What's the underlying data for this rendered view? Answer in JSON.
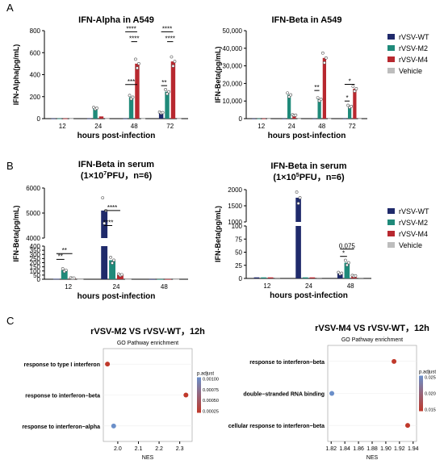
{
  "panel_letters": [
    "A",
    "B",
    "C"
  ],
  "colors": {
    "rVSV-WT": "#1f2a6b",
    "rVSV-M2": "#1f8a7a",
    "rVSV-M4": "#b8282f",
    "Vehicle": "#bdbdbd",
    "padj_low": "#c0392b",
    "padj_high": "#6b8fc9"
  },
  "legend": [
    "rVSV-WT",
    "rVSV-M2",
    "rVSV-M4",
    "Vehicle"
  ],
  "chart_data": [
    {
      "id": "A1",
      "type": "bar",
      "title": "IFN-Alpha in A549",
      "ylabel": "IFN-Alpha(pg/mL)",
      "xlabel": "hours post-infection",
      "categories": [
        "12",
        "24",
        "48",
        "72"
      ],
      "ylim": [
        0,
        800
      ],
      "yticks": [
        "0",
        "200",
        "400",
        "600",
        "800"
      ],
      "series": [
        {
          "name": "rVSV-WT",
          "values": [
            2,
            2,
            2,
            55
          ]
        },
        {
          "name": "rVSV-M2",
          "values": [
            2,
            95,
            195,
            245
          ]
        },
        {
          "name": "rVSV-M4",
          "values": [
            2,
            20,
            500,
            520
          ]
        },
        {
          "name": "Vehicle",
          "values": [
            2,
            2,
            2,
            2
          ]
        }
      ],
      "significance": [
        {
          "group": 2,
          "from": 0,
          "to": 2,
          "level": 310,
          "label": "***"
        },
        {
          "group": 2,
          "from": 1,
          "to": 2,
          "level": 700,
          "label": "****"
        },
        {
          "group": 2,
          "from": 0,
          "to": 2,
          "level": 790,
          "label": "****"
        },
        {
          "group": 3,
          "from": 0,
          "to": 1,
          "level": 300,
          "label": "**"
        },
        {
          "group": 3,
          "from": 0,
          "to": 2,
          "level": 790,
          "label": "****"
        },
        {
          "group": 3,
          "from": 1,
          "to": 2,
          "level": 700,
          "label": "****"
        }
      ]
    },
    {
      "id": "A2",
      "type": "bar",
      "title": "IFN-Beta in A549",
      "ylabel": "IFN-Beta(pg/mL)",
      "xlabel": "hours post-infection",
      "categories": [
        "12",
        "24",
        "48",
        "72"
      ],
      "ylim": [
        0,
        50000
      ],
      "yticks": [
        "0",
        "10,000",
        "20,000",
        "30,000",
        "40,000",
        "50,000"
      ],
      "series": [
        {
          "name": "rVSV-WT",
          "values": [
            100,
            100,
            100,
            100
          ]
        },
        {
          "name": "rVSV-M2",
          "values": [
            100,
            13500,
            11000,
            7000
          ]
        },
        {
          "name": "rVSV-M4",
          "values": [
            100,
            2000,
            34500,
            17000
          ]
        },
        {
          "name": "Vehicle",
          "values": [
            100,
            100,
            100,
            100
          ]
        }
      ],
      "significance": [
        {
          "group": 2,
          "from": 0,
          "to": 1,
          "level": 16000,
          "label": "**"
        },
        {
          "group": 3,
          "from": 0,
          "to": 1,
          "level": 10000,
          "label": "*"
        },
        {
          "group": 3,
          "from": 0,
          "to": 2,
          "level": 19500,
          "label": "*"
        }
      ]
    },
    {
      "id": "B1",
      "type": "bar",
      "title": "IFN-Beta in serum",
      "subtitle_pre": "(1×10",
      "subtitle_exp": "7",
      "subtitle_post": "PFU，n=6)",
      "ylabel": "IFN-Beta(pg/mL)",
      "xlabel": "hours post-infection",
      "categories": [
        "12",
        "24",
        "48"
      ],
      "axis_break": {
        "low": [
          0,
          400
        ],
        "high": [
          4000,
          6000
        ]
      },
      "yticks_low": [
        "0",
        "50",
        "100",
        "150",
        "200",
        "250",
        "300",
        "350",
        "400"
      ],
      "yticks_high": [
        "4000",
        "5000",
        "6000"
      ],
      "series": [
        {
          "name": "rVSV-WT",
          "values": [
            5,
            5100,
            2
          ]
        },
        {
          "name": "rVSV-M2",
          "values": [
            110,
            230,
            2
          ]
        },
        {
          "name": "rVSV-M4",
          "values": [
            15,
            55,
            2
          ]
        },
        {
          "name": "Vehicle",
          "values": [
            2,
            2,
            2
          ]
        }
      ],
      "significance": [
        {
          "group": 0,
          "from": 0,
          "to": 1,
          "level": 240,
          "label": "**"
        },
        {
          "group": 0,
          "from": 0,
          "to": 2,
          "level": 310,
          "label": "**"
        },
        {
          "group": 1,
          "from": 0,
          "to": 1,
          "level": 4500,
          "label": "****"
        },
        {
          "group": 1,
          "from": 0,
          "to": 2,
          "level": 5100,
          "label": "****"
        }
      ]
    },
    {
      "id": "B2",
      "type": "bar",
      "title": "IFN-Beta in serum",
      "subtitle_pre": "(1×10",
      "subtitle_exp": "5",
      "subtitle_post": "PFU，n=6)",
      "ylabel": "IFN-Beta(pg/mL)",
      "xlabel": "hours post-infection",
      "categories": [
        "12",
        "24",
        "48"
      ],
      "axis_break": {
        "low": [
          0,
          100
        ],
        "high": [
          1000,
          2000
        ]
      },
      "yticks_low": [
        "0",
        "25",
        "50",
        "75",
        "100"
      ],
      "yticks_high": [
        "1000",
        "1500",
        "2000"
      ],
      "series": [
        {
          "name": "rVSV-WT",
          "values": [
            2,
            1750,
            10
          ]
        },
        {
          "name": "rVSV-M2",
          "values": [
            2,
            2,
            30
          ]
        },
        {
          "name": "rVSV-M4",
          "values": [
            2,
            2,
            5
          ]
        },
        {
          "name": "Vehicle",
          "values": [
            2,
            2,
            2
          ]
        }
      ],
      "significance": [
        {
          "group": 2,
          "from": 0,
          "to": 1,
          "level": 42,
          "label": "*"
        },
        {
          "group": 2,
          "from": 0,
          "to": 2,
          "level": 56,
          "label": "0.075"
        }
      ]
    },
    {
      "id": "C1",
      "type": "scatter",
      "title": "rVSV-M2 VS rVSV-WT，12h",
      "subtitle": "GO Pathway enrichment",
      "xlabel": "NES",
      "xlim": [
        1.93,
        2.36
      ],
      "xticks": [
        "2.0",
        "2.1",
        "2.2",
        "2.3"
      ],
      "categories": [
        "response to type I interferon",
        "response to interferon−beta",
        "response to interferon−alpha"
      ],
      "points": [
        {
          "term": "response to type I interferon",
          "x": 1.95,
          "padj": 0.00025
        },
        {
          "term": "response to interferon−beta",
          "x": 2.33,
          "padj": 0.0002
        },
        {
          "term": "response to interferon−alpha",
          "x": 1.98,
          "padj": 0.00095
        }
      ],
      "legend_title": "p.adjust",
      "legend_ticks": [
        "0.00100",
        "0.00075",
        "0.00050",
        "0.00025"
      ]
    },
    {
      "id": "C2",
      "type": "scatter",
      "title": "rVSV-M4 VS rVSV-WT，12h",
      "subtitle": "GO Pathway enrichment",
      "xlabel": "NES",
      "xlim": [
        1.815,
        1.945
      ],
      "xticks": [
        "1.82",
        "1.84",
        "1.86",
        "1.88",
        "1.90",
        "1.92",
        "1.94"
      ],
      "categories": [
        "response to interferon−beta",
        "double−stranded RNA binding",
        "cellular response to interferon−beta"
      ],
      "points": [
        {
          "term": "response to interferon−beta",
          "x": 1.912,
          "padj": 0.02
        },
        {
          "term": "double−stranded RNA binding",
          "x": 1.821,
          "padj": 0.027
        },
        {
          "term": "cellular response to interferon−beta",
          "x": 1.932,
          "padj": 0.012
        }
      ],
      "legend_title": "p.adjust",
      "legend_ticks": [
        "0.025",
        "0.020",
        "0.015"
      ]
    }
  ]
}
